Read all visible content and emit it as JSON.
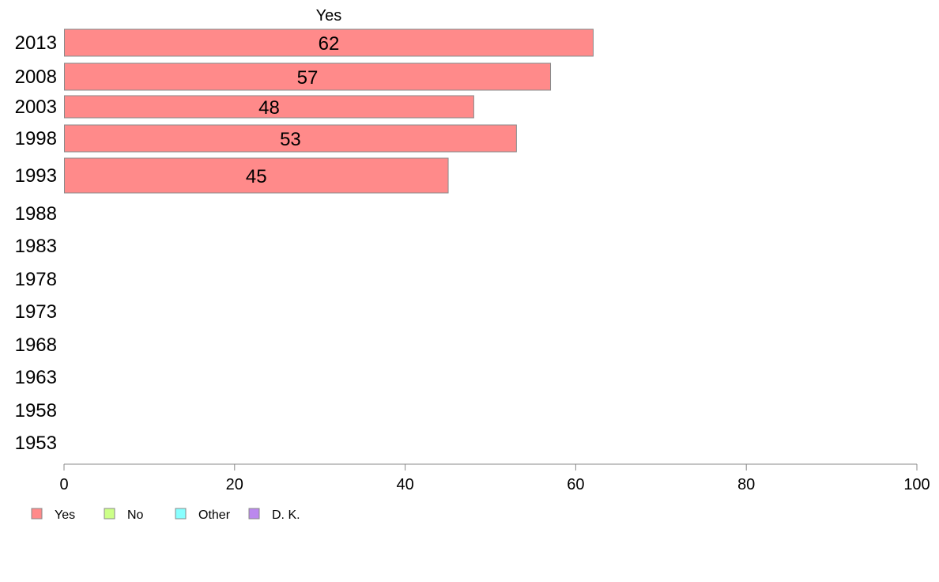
{
  "chart_data": {
    "type": "bar",
    "orientation": "horizontal",
    "title": "Yes",
    "categories": [
      "2013",
      "2008",
      "2003",
      "1998",
      "1993",
      "1988",
      "1983",
      "1978",
      "1973",
      "1968",
      "1963",
      "1958",
      "1953"
    ],
    "series": [
      {
        "name": "Yes",
        "color": "#ff8a8a",
        "values": [
          62,
          57,
          48,
          53,
          45,
          null,
          null,
          null,
          null,
          null,
          null,
          null,
          null
        ]
      }
    ],
    "data_labels": [
      "62",
      "57",
      "48",
      "53",
      "45"
    ],
    "xlim": [
      0,
      100
    ],
    "x_ticks": [
      "0",
      "20",
      "40",
      "60",
      "80",
      "100"
    ],
    "grid": false,
    "legend_position": "bottom-left",
    "legend": [
      {
        "label": "Yes",
        "color": "#ff8a8a"
      },
      {
        "label": "No",
        "color": "#ccff88"
      },
      {
        "label": "Other",
        "color": "#88ffff"
      },
      {
        "label": "D. K.",
        "color": "#bb88ee"
      }
    ]
  }
}
